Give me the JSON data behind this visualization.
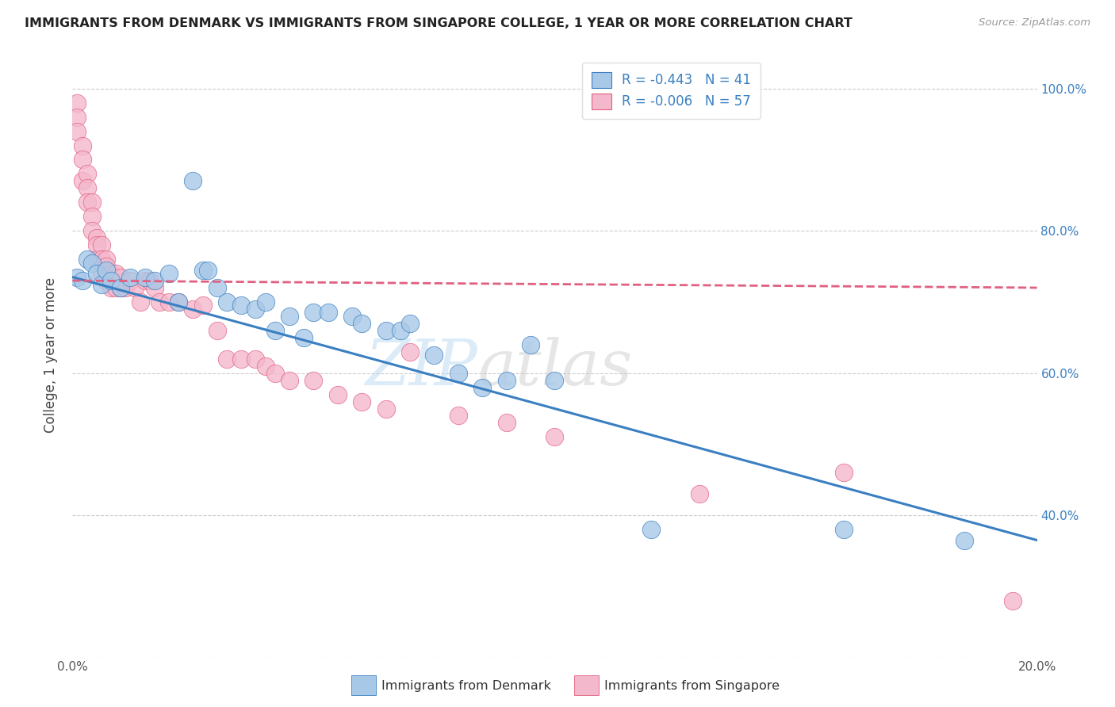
{
  "title": "IMMIGRANTS FROM DENMARK VS IMMIGRANTS FROM SINGAPORE COLLEGE, 1 YEAR OR MORE CORRELATION CHART",
  "source": "Source: ZipAtlas.com",
  "ylabel": "College, 1 year or more",
  "xlim": [
    0.0,
    0.2
  ],
  "ylim": [
    0.2,
    1.05
  ],
  "denmark_color": "#a8c8e8",
  "singapore_color": "#f4b8cc",
  "denmark_line_color": "#3a7fc1",
  "singapore_line_color": "#e06080",
  "denmark_R": -0.443,
  "denmark_N": 41,
  "singapore_R": -0.006,
  "singapore_N": 57,
  "legend_label_denmark": "Immigrants from Denmark",
  "legend_label_singapore": "Immigrants from Singapore",
  "watermark_left": "ZIP",
  "watermark_right": "atlas",
  "background_color": "#ffffff",
  "grid_color": "#cccccc",
  "denmark_scatter_x": [
    0.001,
    0.002,
    0.003,
    0.004,
    0.005,
    0.006,
    0.007,
    0.008,
    0.01,
    0.012,
    0.015,
    0.017,
    0.02,
    0.022,
    0.025,
    0.027,
    0.028,
    0.03,
    0.032,
    0.035,
    0.038,
    0.04,
    0.042,
    0.045,
    0.048,
    0.05,
    0.053,
    0.058,
    0.06,
    0.065,
    0.068,
    0.07,
    0.075,
    0.08,
    0.085,
    0.09,
    0.095,
    0.1,
    0.12,
    0.16,
    0.185
  ],
  "denmark_scatter_y": [
    0.735,
    0.73,
    0.76,
    0.755,
    0.74,
    0.725,
    0.745,
    0.73,
    0.72,
    0.735,
    0.735,
    0.73,
    0.74,
    0.7,
    0.87,
    0.745,
    0.745,
    0.72,
    0.7,
    0.695,
    0.69,
    0.7,
    0.66,
    0.68,
    0.65,
    0.685,
    0.685,
    0.68,
    0.67,
    0.66,
    0.66,
    0.67,
    0.625,
    0.6,
    0.58,
    0.59,
    0.64,
    0.59,
    0.38,
    0.38,
    0.365
  ],
  "singapore_scatter_x": [
    0.001,
    0.001,
    0.001,
    0.002,
    0.002,
    0.002,
    0.003,
    0.003,
    0.003,
    0.004,
    0.004,
    0.004,
    0.005,
    0.005,
    0.005,
    0.006,
    0.006,
    0.006,
    0.007,
    0.007,
    0.007,
    0.008,
    0.008,
    0.009,
    0.009,
    0.01,
    0.01,
    0.011,
    0.012,
    0.013,
    0.014,
    0.015,
    0.016,
    0.017,
    0.018,
    0.02,
    0.022,
    0.025,
    0.027,
    0.03,
    0.032,
    0.035,
    0.038,
    0.04,
    0.042,
    0.045,
    0.05,
    0.055,
    0.06,
    0.065,
    0.07,
    0.08,
    0.09,
    0.1,
    0.13,
    0.16,
    0.195
  ],
  "singapore_scatter_y": [
    0.98,
    0.96,
    0.94,
    0.92,
    0.9,
    0.87,
    0.88,
    0.86,
    0.84,
    0.84,
    0.82,
    0.8,
    0.79,
    0.78,
    0.76,
    0.78,
    0.76,
    0.74,
    0.76,
    0.75,
    0.73,
    0.74,
    0.72,
    0.74,
    0.72,
    0.735,
    0.72,
    0.72,
    0.73,
    0.72,
    0.7,
    0.73,
    0.73,
    0.72,
    0.7,
    0.7,
    0.7,
    0.69,
    0.695,
    0.66,
    0.62,
    0.62,
    0.62,
    0.61,
    0.6,
    0.59,
    0.59,
    0.57,
    0.56,
    0.55,
    0.63,
    0.54,
    0.53,
    0.51,
    0.43,
    0.46,
    0.28
  ],
  "dk_line_x0": 0.0,
  "dk_line_x1": 0.2,
  "dk_line_y0": 0.735,
  "dk_line_y1": 0.365,
  "sg_line_x0": 0.0,
  "sg_line_x1": 0.2,
  "sg_line_y0": 0.73,
  "sg_line_y1": 0.72
}
